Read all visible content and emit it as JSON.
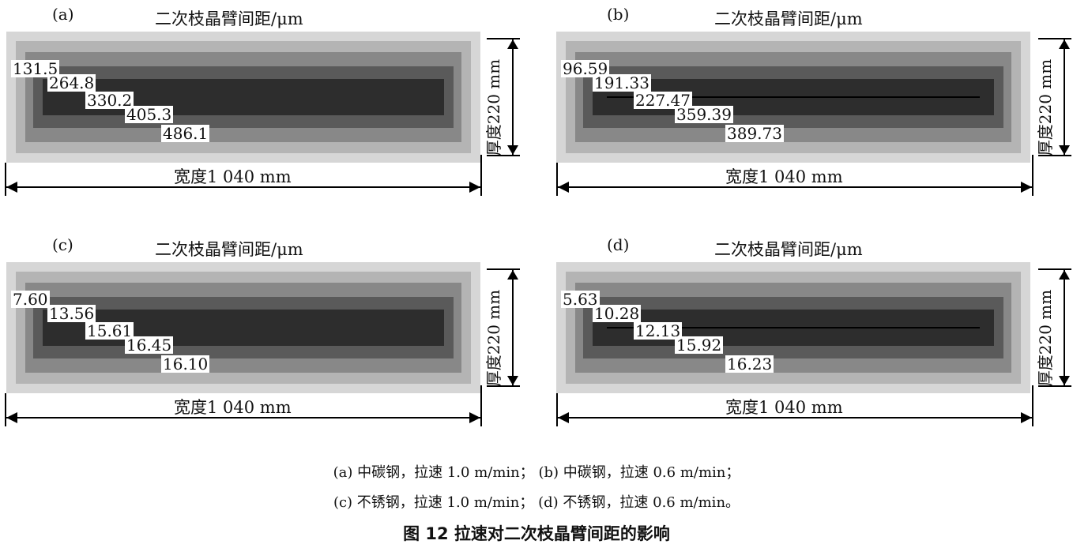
{
  "panels": [
    {
      "label": "(a)",
      "title": "二次枝晶臂间距/μm",
      "values": [
        "131.5",
        "264.8",
        "330.2",
        "405.3",
        "486.1"
      ],
      "thickness": "厚度220 mm",
      "width": "宽度1 040 mm",
      "centerline": false
    },
    {
      "label": "(b)",
      "title": "二次枝晶臂间距/μm",
      "values": [
        "96.59",
        "191.33",
        "227.47",
        "359.39",
        "389.73"
      ],
      "thickness": "厚度220 mm",
      "width": "宽度1 040 mm",
      "centerline": true
    },
    {
      "label": "(c)",
      "title": "二次枝晶臂间距/μm",
      "values": [
        "7.60",
        "13.56",
        "15.61",
        "16.45",
        "16.10"
      ],
      "thickness": "厚度220 mm",
      "width": "宽度1 040 mm",
      "centerline": false
    },
    {
      "label": "(d)",
      "title": "二次枝晶臂间距/μm",
      "values": [
        "5.63",
        "10.28",
        "12.13",
        "15.92",
        "16.23"
      ],
      "thickness": "厚度220 mm",
      "width": "宽度1 040 mm",
      "centerline": true
    }
  ],
  "caption": {
    "line1": "(a) 中碳钢，拉速 1.0 m/min；  (b) 中碳钢，拉速 0.6 m/min；",
    "line2": "(c) 不锈钢，拉速 1.0 m/min；  (d) 不锈钢，拉速 0.6 m/min。"
  },
  "figure_title": "图 12    拉速对二次枝晶臂间距的影响"
}
